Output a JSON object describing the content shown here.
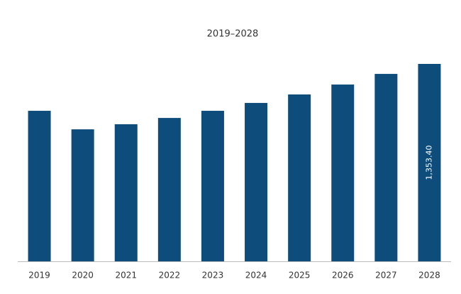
{
  "chart_data": {
    "type": "bar",
    "title": "2019–2028",
    "categories": [
      "2019",
      "2020",
      "2021",
      "2022",
      "2023",
      "2024",
      "2025",
      "2026",
      "2027",
      "2028"
    ],
    "values": [
      1032,
      905,
      940,
      983,
      1032,
      1086,
      1144,
      1212,
      1285,
      1353.4
    ],
    "value_labels": [
      null,
      null,
      null,
      null,
      null,
      null,
      null,
      null,
      null,
      "1,353.40"
    ],
    "color": "#0e4d7b"
  }
}
